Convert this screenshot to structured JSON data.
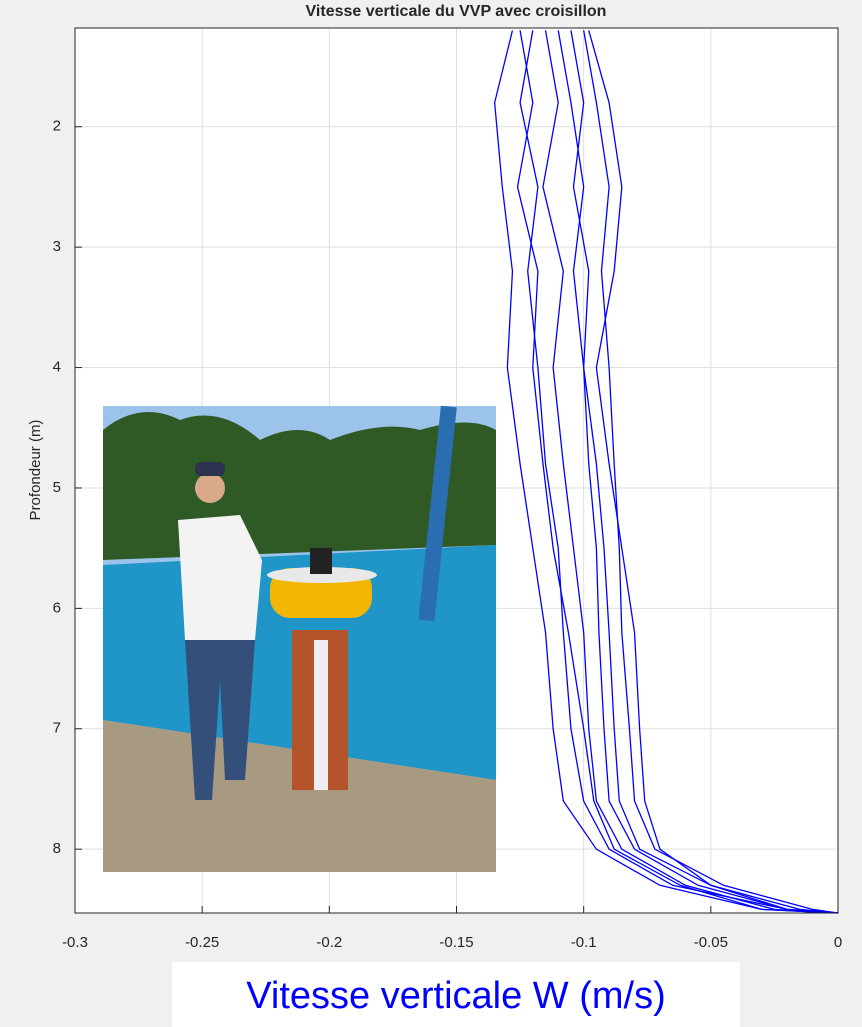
{
  "chart_data": {
    "type": "line",
    "title": "Vitesse verticale du VVP avec croisillon",
    "x_label": "Vitesse verticale W (m/s)",
    "y_label": "Profondeur (m)",
    "xlim": [
      -0.3,
      0
    ],
    "xticks": [
      -0.3,
      -0.25,
      -0.2,
      -0.15,
      -0.1,
      -0.05,
      0
    ],
    "ylim": [
      1.18,
      8.53
    ],
    "yticks": [
      2,
      3,
      4,
      5,
      6,
      7,
      8
    ],
    "y_reversed": true,
    "grid": true,
    "series": [
      {
        "color": "#0000ff",
        "x": [
          -0.128,
          -0.135,
          -0.132,
          -0.128,
          -0.13,
          -0.125,
          -0.12,
          -0.115,
          -0.112,
          -0.108,
          -0.095,
          -0.07,
          -0.03,
          0
        ],
        "values": [
          1.2,
          1.8,
          2.5,
          3.2,
          4,
          4.8,
          5.5,
          6.2,
          7,
          7.6,
          8,
          8.3,
          8.5,
          8.53
        ]
      },
      {
        "color": "#0000ff",
        "x": [
          -0.12,
          -0.125,
          -0.118,
          -0.122,
          -0.118,
          -0.115,
          -0.11,
          -0.108,
          -0.105,
          -0.1,
          -0.09,
          -0.065,
          -0.02,
          0
        ],
        "values": [
          1.2,
          1.8,
          2.5,
          3.2,
          4,
          4.8,
          5.5,
          6.2,
          7,
          7.6,
          8,
          8.3,
          8.5,
          8.53
        ]
      },
      {
        "color": "#0000ff",
        "x": [
          -0.115,
          -0.11,
          -0.116,
          -0.108,
          -0.112,
          -0.108,
          -0.104,
          -0.1,
          -0.098,
          -0.095,
          -0.085,
          -0.06,
          -0.025,
          -0.005
        ],
        "values": [
          1.2,
          1.8,
          2.5,
          3.2,
          4,
          4.8,
          5.5,
          6.2,
          7,
          7.6,
          8,
          8.3,
          8.5,
          8.53
        ]
      },
      {
        "color": "#0000ff",
        "x": [
          -0.11,
          -0.105,
          -0.1,
          -0.104,
          -0.1,
          -0.098,
          -0.095,
          -0.094,
          -0.092,
          -0.09,
          -0.08,
          -0.055,
          -0.02,
          0
        ],
        "values": [
          1.2,
          1.8,
          2.5,
          3.2,
          4,
          4.8,
          5.5,
          6.2,
          7,
          7.6,
          8,
          8.3,
          8.5,
          8.53
        ]
      },
      {
        "color": "#0000ff",
        "x": [
          -0.105,
          -0.1,
          -0.104,
          -0.098,
          -0.1,
          -0.095,
          -0.092,
          -0.09,
          -0.088,
          -0.086,
          -0.078,
          -0.05,
          -0.015,
          0
        ],
        "values": [
          1.2,
          1.8,
          2.5,
          3.2,
          4,
          4.8,
          5.5,
          6.2,
          7,
          7.6,
          8,
          8.3,
          8.5,
          8.53
        ]
      },
      {
        "color": "#0000ff",
        "x": [
          -0.1,
          -0.095,
          -0.09,
          -0.093,
          -0.09,
          -0.088,
          -0.086,
          -0.085,
          -0.082,
          -0.08,
          -0.072,
          -0.045,
          -0.01,
          0
        ],
        "values": [
          1.2,
          1.8,
          2.5,
          3.2,
          4,
          4.8,
          5.5,
          6.2,
          7,
          7.6,
          8,
          8.3,
          8.5,
          8.53
        ]
      },
      {
        "color": "#0000ff",
        "x": [
          -0.098,
          -0.09,
          -0.085,
          -0.088,
          -0.095,
          -0.09,
          -0.085,
          -0.08,
          -0.078,
          -0.076,
          -0.07,
          -0.05,
          -0.02,
          0
        ],
        "values": [
          1.2,
          1.8,
          2.5,
          3.2,
          4,
          4.8,
          5.5,
          6.2,
          7,
          7.6,
          8,
          8.3,
          8.5,
          8.53
        ]
      },
      {
        "color": "#0000ff",
        "x": [
          -0.125,
          -0.12,
          -0.126,
          -0.118,
          -0.12,
          -0.116,
          -0.112,
          -0.106,
          -0.1,
          -0.096,
          -0.088,
          -0.062,
          -0.03,
          -0.002
        ],
        "values": [
          1.2,
          1.8,
          2.5,
          3.2,
          4,
          4.8,
          5.5,
          6.2,
          7,
          7.6,
          8,
          8.3,
          8.5,
          8.53
        ]
      }
    ]
  }
}
